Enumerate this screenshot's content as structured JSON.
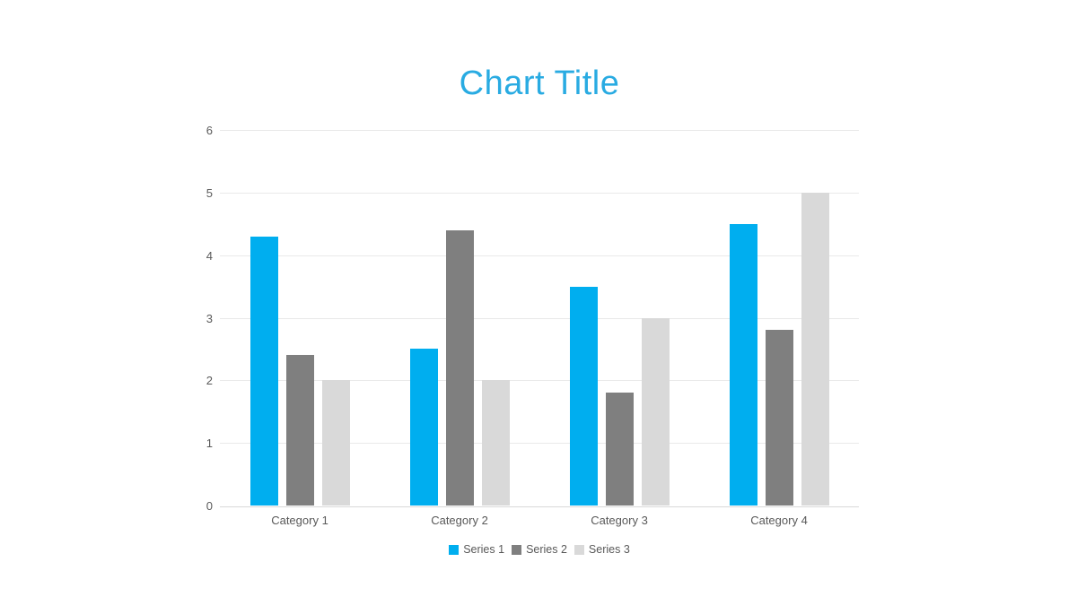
{
  "chart_data": {
    "type": "bar",
    "title": "Chart Title",
    "title_color": "#29ABE2",
    "categories": [
      "Category 1",
      "Category 2",
      "Category 3",
      "Category 4"
    ],
    "series": [
      {
        "name": "Series 1",
        "color": "#00AEEF",
        "values": [
          4.3,
          2.5,
          3.5,
          4.5
        ]
      },
      {
        "name": "Series 2",
        "color": "#7F7F7F",
        "values": [
          2.4,
          4.4,
          1.8,
          2.8
        ]
      },
      {
        "name": "Series 3",
        "color": "#D9D9D9",
        "values": [
          2.0,
          2.0,
          3.0,
          5.0
        ]
      }
    ],
    "ylim": [
      0,
      6
    ],
    "yticks": [
      0,
      1,
      2,
      3,
      4,
      5,
      6
    ],
    "grid": true,
    "legend_position": "bottom",
    "xlabel": "",
    "ylabel": "",
    "colors": {
      "axis_label": "#595959",
      "gridline": "#E9E9E9",
      "axis_line": "#D9D9D9",
      "background": "#FFFFFF"
    }
  }
}
